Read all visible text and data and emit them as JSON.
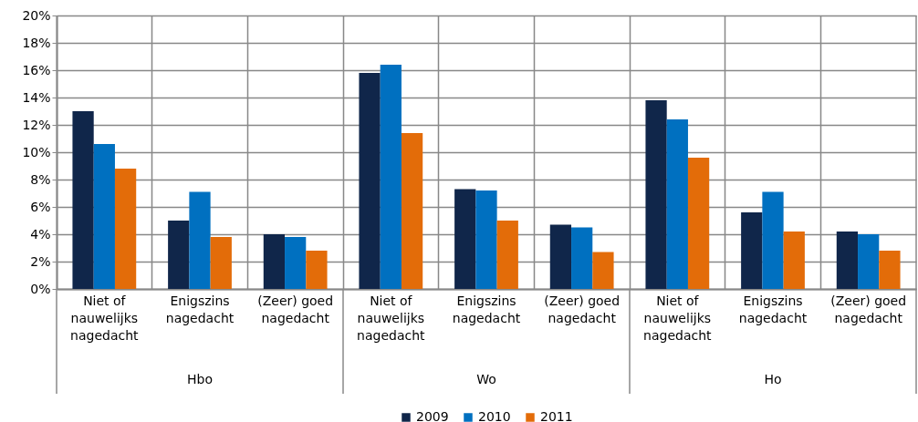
{
  "chart_data": {
    "type": "bar",
    "categories": [
      "Niet of nauwelijks nagedacht",
      "Enigszins nagedacht",
      "(Zeer) goed nagedacht",
      "Niet of nauwelijks nagedacht",
      "Enigszins nagedacht",
      "(Zeer) goed nagedacht",
      "Niet of nauwelijks nagedacht",
      "Enigszins nagedacht",
      "(Zeer) goed nagedacht"
    ],
    "series": [
      {
        "name": "2009",
        "color": "#10264a",
        "values": [
          13.0,
          5.0,
          4.0,
          15.8,
          7.3,
          4.7,
          13.8,
          5.6,
          4.2
        ]
      },
      {
        "name": "2010",
        "color": "#0070c0",
        "values": [
          10.6,
          7.1,
          3.8,
          16.4,
          7.2,
          4.5,
          12.4,
          7.1,
          4.0
        ]
      },
      {
        "name": "2011",
        "color": "#e36c09",
        "values": [
          8.8,
          3.8,
          2.8,
          11.4,
          5.0,
          2.7,
          9.6,
          4.2,
          2.8
        ]
      }
    ],
    "annotations": [
      "Hbo",
      "Wo",
      "Ho"
    ],
    "ylim": [
      0,
      20
    ],
    "yticks": [
      {
        "value": 0,
        "label": "0%"
      },
      {
        "value": 2,
        "label": "2%"
      },
      {
        "value": 4,
        "label": "4%"
      },
      {
        "value": 6,
        "label": "6%"
      },
      {
        "value": 8,
        "label": "8%"
      },
      {
        "value": 10,
        "label": "10%"
      },
      {
        "value": 12,
        "label": "12%"
      },
      {
        "value": 14,
        "label": "14%"
      },
      {
        "value": 16,
        "label": "16%"
      },
      {
        "value": 18,
        "label": "18%"
      },
      {
        "value": 20,
        "label": "20%"
      }
    ],
    "grid": true,
    "legend": "bottom"
  }
}
